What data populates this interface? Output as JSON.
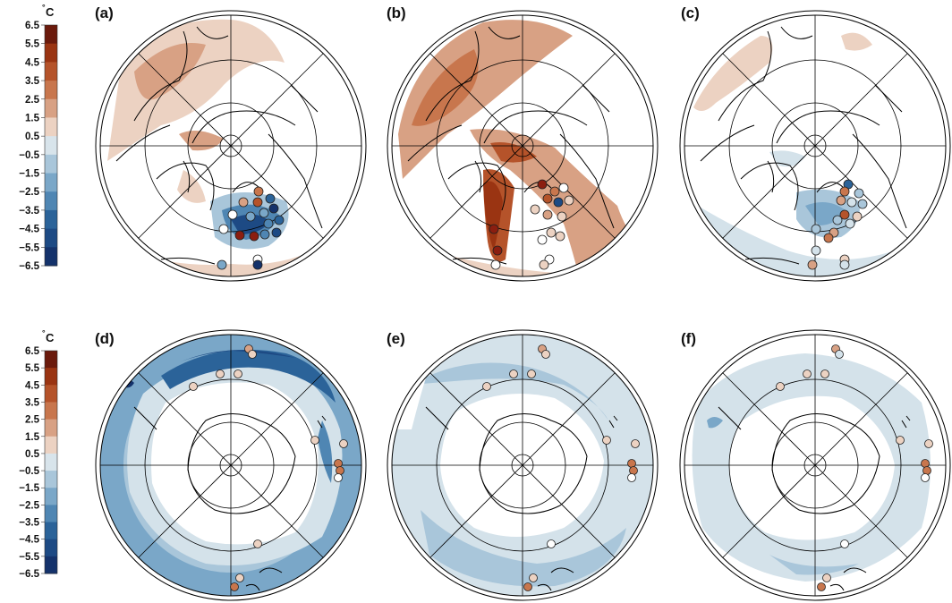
{
  "colorbar": {
    "unit": "C",
    "degree_symbol": "°",
    "ticks": [
      "6.5",
      "5.5",
      "4.5",
      "3.5",
      "2.5",
      "1.5",
      "0.5",
      "−0.5",
      "−1.5",
      "−2.5",
      "−3.5",
      "−4.5",
      "−5.5",
      "−6.5"
    ],
    "colors": [
      "#6b1a0c",
      "#9a3412",
      "#b5532a",
      "#c8764d",
      "#d8a184",
      "#ecd2c2",
      "#ffffff",
      "#d8e4eb",
      "#a9c6da",
      "#7aa7c8",
      "#4f86b3",
      "#2b6399",
      "#1d4a84",
      "#14326b"
    ]
  },
  "panels": [
    {
      "label": "(a)",
      "hemisphere": "north"
    },
    {
      "label": "(b)",
      "hemisphere": "north"
    },
    {
      "label": "(c)",
      "hemisphere": "north"
    },
    {
      "label": "(d)",
      "hemisphere": "south"
    },
    {
      "label": "(e)",
      "hemisphere": "south"
    },
    {
      "label": "(f)",
      "hemisphere": "south"
    }
  ],
  "colors": {
    "warm_strong": "#8b1e10",
    "warm": "#c8764d",
    "warm_light": "#e8c4ae",
    "cool_light": "#d4e2ea",
    "cool": "#7aa7c8",
    "cool_strong": "#1d4a84"
  }
}
